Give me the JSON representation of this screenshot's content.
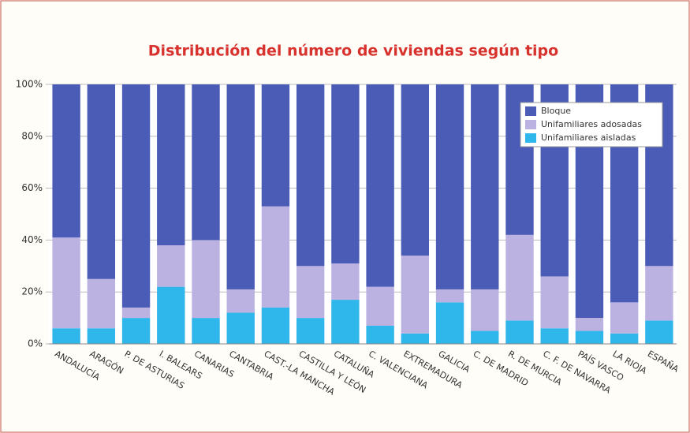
{
  "chart_data": {
    "type": "stacked_bar",
    "title": "Distribución del número de viviendas según tipo",
    "categories": [
      "ANDALUCÍA",
      "ARAGÓN",
      "P. DE ASTURIAS",
      "I. BALEARS",
      "CANARIAS",
      "CANTABRIA",
      "CAST.-LA MANCHA",
      "CASTILLA Y LEÓN",
      "CATALUÑA",
      "C. VALENCIANA",
      "EXTREMADURA",
      "GALICIA",
      "C. DE MADRID",
      "R. DE MURCIA",
      "C. F. DE NAVARRA",
      "PAÍS VASCO",
      "LA RIOJA",
      "ESPAÑA"
    ],
    "series": [
      {
        "name": "Bloque",
        "color": "#4a5cb6",
        "values": [
          59,
          75,
          86,
          62,
          60,
          79,
          47,
          70,
          69,
          78,
          66,
          79,
          79,
          58,
          74,
          90,
          84,
          70
        ]
      },
      {
        "name": "Unifamiliares adosadas",
        "color": "#bcb2e2",
        "values": [
          35,
          19,
          4,
          16,
          30,
          9,
          39,
          20,
          14,
          15,
          30,
          5,
          16,
          33,
          20,
          5,
          12,
          21
        ]
      },
      {
        "name": "Unifamiliares aisladas",
        "color": "#2fb6ea",
        "values": [
          6,
          6,
          10,
          22,
          10,
          12,
          14,
          10,
          17,
          7,
          4,
          16,
          5,
          9,
          6,
          5,
          4,
          9
        ]
      }
    ],
    "ylim": [
      0,
      100
    ],
    "yticks": [
      {
        "value": 0,
        "label": "0%"
      },
      {
        "value": 20,
        "label": "20%"
      },
      {
        "value": 40,
        "label": "40%"
      },
      {
        "value": 60,
        "label": "60%"
      },
      {
        "value": 80,
        "label": "80%"
      },
      {
        "value": 100,
        "label": "100%"
      }
    ],
    "grid": true,
    "legend": "upper right"
  }
}
